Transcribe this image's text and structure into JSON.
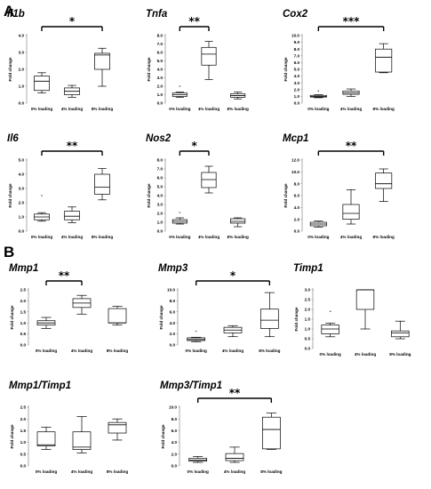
{
  "panels": {
    "a": "A",
    "b": "B"
  },
  "chart_data": [
    {
      "type": "boxplot",
      "group": "A",
      "title": "Il1b",
      "ylabel": "Fold change",
      "ylim": [
        0,
        4.0
      ],
      "yticks": [
        0.0,
        1.0,
        2.0,
        3.0,
        4.0
      ],
      "categories": [
        "0% loading",
        "4% loading",
        "8% loading"
      ],
      "boxes": [
        {
          "min": 0.6,
          "q1": 0.75,
          "median": 1.3,
          "q3": 1.6,
          "max": 1.8
        },
        {
          "min": 0.35,
          "q1": 0.5,
          "median": 0.7,
          "q3": 0.9,
          "max": 1.05
        },
        {
          "min": 1.0,
          "q1": 2.0,
          "median": 2.85,
          "q3": 2.95,
          "max": 3.25
        }
      ],
      "outliers": [
        [],
        [],
        []
      ],
      "significance": {
        "from": 0,
        "to": 2,
        "label": "*"
      }
    },
    {
      "type": "boxplot",
      "group": "A",
      "title": "Tnfa",
      "ylabel": "Fold change",
      "ylim": [
        0,
        8.0
      ],
      "yticks": [
        0.0,
        1.0,
        2.0,
        3.0,
        4.0,
        5.0,
        6.0,
        7.0,
        8.0
      ],
      "categories": [
        "0% loading",
        "4% loading",
        "8% loading"
      ],
      "boxes": [
        {
          "min": 0.7,
          "q1": 0.8,
          "median": 1.0,
          "q3": 1.2,
          "max": 1.3
        },
        {
          "min": 2.8,
          "q1": 4.5,
          "median": 5.8,
          "q3": 6.6,
          "max": 7.3
        },
        {
          "min": 0.5,
          "q1": 0.7,
          "median": 0.9,
          "q3": 1.1,
          "max": 1.3
        }
      ],
      "outliers": [
        [
          2.0
        ],
        [],
        []
      ],
      "significance": {
        "from": 0,
        "to": 1,
        "label": "**"
      }
    },
    {
      "type": "boxplot",
      "group": "A",
      "title": "Cox2",
      "ylabel": "Fold change",
      "ylim": [
        0,
        10.0
      ],
      "yticks": [
        0.0,
        1.0,
        2.0,
        3.0,
        4.0,
        5.0,
        6.0,
        7.0,
        8.0,
        9.0,
        10.0
      ],
      "categories": [
        "0% loading",
        "4% loading",
        "8% loading"
      ],
      "boxes": [
        {
          "min": 0.8,
          "q1": 0.9,
          "median": 1.0,
          "q3": 1.15,
          "max": 1.25
        },
        {
          "min": 1.0,
          "q1": 1.3,
          "median": 1.5,
          "q3": 1.8,
          "max": 2.1
        },
        {
          "min": 4.5,
          "q1": 4.6,
          "median": 6.8,
          "q3": 8.0,
          "max": 8.8
        }
      ],
      "outliers": [
        [
          1.8
        ],
        [],
        []
      ],
      "significance": {
        "from": 0,
        "to": 2,
        "label": "***"
      }
    },
    {
      "type": "boxplot",
      "group": "A",
      "title": "Il6",
      "ylabel": "Fold change",
      "ylim": [
        0,
        5.0
      ],
      "yticks": [
        0.0,
        1.0,
        2.0,
        3.0,
        4.0,
        5.0
      ],
      "categories": [
        "0% loading",
        "4% loading",
        "8% loading"
      ],
      "boxes": [
        {
          "min": 0.7,
          "q1": 0.8,
          "median": 1.0,
          "q3": 1.2,
          "max": 1.3
        },
        {
          "min": 0.6,
          "q1": 0.8,
          "median": 1.05,
          "q3": 1.4,
          "max": 1.7
        },
        {
          "min": 2.2,
          "q1": 2.6,
          "median": 3.1,
          "q3": 4.0,
          "max": 4.4
        }
      ],
      "outliers": [
        [
          2.5
        ],
        [],
        []
      ],
      "significance": {
        "from": 0,
        "to": 2,
        "label": "**"
      }
    },
    {
      "type": "boxplot",
      "group": "A",
      "title": "Nos2",
      "ylabel": "Fold change",
      "ylim": [
        0,
        8.0
      ],
      "yticks": [
        0.0,
        1.0,
        2.0,
        3.0,
        4.0,
        5.0,
        6.0,
        7.0,
        8.0
      ],
      "categories": [
        "0% loading",
        "4% loading",
        "8% loading"
      ],
      "boxes": [
        {
          "min": 0.8,
          "q1": 0.9,
          "median": 1.1,
          "q3": 1.3,
          "max": 1.5
        },
        {
          "min": 4.3,
          "q1": 4.9,
          "median": 5.8,
          "q3": 6.6,
          "max": 7.3
        },
        {
          "min": 0.5,
          "q1": 0.9,
          "median": 1.1,
          "q3": 1.4,
          "max": 1.5
        }
      ],
      "outliers": [
        [
          2.1
        ],
        [],
        []
      ],
      "significance": {
        "from": 0,
        "to": 1,
        "label": "*"
      }
    },
    {
      "type": "boxplot",
      "group": "A",
      "title": "Mcp1",
      "ylabel": "Fold change",
      "ylim": [
        0,
        12.0
      ],
      "yticks": [
        0.0,
        2.0,
        4.0,
        6.0,
        8.0,
        10.0,
        12.0
      ],
      "categories": [
        "0% loading",
        "4% loading",
        "8% loading"
      ],
      "boxes": [
        {
          "min": 0.7,
          "q1": 0.9,
          "median": 1.2,
          "q3": 1.5,
          "max": 1.7
        },
        {
          "min": 1.2,
          "q1": 2.0,
          "median": 3.0,
          "q3": 4.5,
          "max": 7.0
        },
        {
          "min": 5.0,
          "q1": 7.2,
          "median": 8.0,
          "q3": 9.8,
          "max": 10.5
        }
      ],
      "outliers": [
        [],
        [],
        []
      ],
      "significance": {
        "from": 0,
        "to": 2,
        "label": "**"
      }
    },
    {
      "type": "boxplot",
      "group": "B",
      "title": "Mmp1",
      "ylabel": "Fold change",
      "ylim": [
        0,
        2.5
      ],
      "yticks": [
        0.0,
        0.5,
        1.0,
        1.5,
        2.0,
        2.5
      ],
      "categories": [
        "0% loading",
        "4% loading",
        "8% loading"
      ],
      "boxes": [
        {
          "min": 0.75,
          "q1": 0.9,
          "median": 1.0,
          "q3": 1.1,
          "max": 1.25
        },
        {
          "min": 1.4,
          "q1": 1.7,
          "median": 1.9,
          "q3": 2.1,
          "max": 2.25
        },
        {
          "min": 0.9,
          "q1": 1.0,
          "median": 1.0,
          "q3": 1.65,
          "max": 1.75
        }
      ],
      "outliers": [
        [],
        [],
        []
      ],
      "significance": {
        "from": 0,
        "to": 1,
        "label": "**"
      }
    },
    {
      "type": "boxplot",
      "group": "B",
      "title": "Mmp3",
      "ylabel": "Fold change",
      "ylim": [
        0,
        10.0
      ],
      "yticks": [
        0.0,
        2.0,
        4.0,
        6.0,
        8.0,
        10.0
      ],
      "categories": [
        "0% loading",
        "4% loading",
        "8% loading"
      ],
      "boxes": [
        {
          "min": 0.6,
          "q1": 0.8,
          "median": 1.0,
          "q3": 1.3,
          "max": 1.4
        },
        {
          "min": 1.5,
          "q1": 2.2,
          "median": 2.7,
          "q3": 3.2,
          "max": 3.5
        },
        {
          "min": 1.5,
          "q1": 3.0,
          "median": 4.5,
          "q3": 6.5,
          "max": 9.5
        }
      ],
      "outliers": [
        [
          2.5
        ],
        [],
        []
      ],
      "significance": {
        "from": 0,
        "to": 2,
        "label": "*"
      }
    },
    {
      "type": "boxplot",
      "group": "B",
      "title": "Timp1",
      "ylabel": "Fold change",
      "ylim": [
        0,
        3.0
      ],
      "yticks": [
        0.0,
        0.5,
        1.0,
        1.5,
        2.0,
        2.5,
        3.0
      ],
      "categories": [
        "0% loading",
        "4% loading",
        "8% loading"
      ],
      "boxes": [
        {
          "min": 0.6,
          "q1": 0.75,
          "median": 1.0,
          "q3": 1.2,
          "max": 1.3
        },
        {
          "min": 1.0,
          "q1": 2.0,
          "median": 3.0,
          "q3": 3.0,
          "max": 3.0
        },
        {
          "min": 0.5,
          "q1": 0.6,
          "median": 0.8,
          "q3": 0.9,
          "max": 1.4
        }
      ],
      "outliers": [
        [
          1.9
        ],
        [],
        []
      ],
      "significance": null
    },
    {
      "type": "boxplot",
      "group": "B",
      "title": "Mmp1/Timp1",
      "ylabel": "Fold change",
      "ylim": [
        0,
        2.5
      ],
      "yticks": [
        0.0,
        0.5,
        1.0,
        1.5,
        2.0,
        2.5
      ],
      "categories": [
        "0% loading",
        "4% loading",
        "8% loading"
      ],
      "boxes": [
        {
          "min": 0.7,
          "q1": 0.85,
          "median": 0.9,
          "q3": 1.45,
          "max": 1.65
        },
        {
          "min": 0.55,
          "q1": 0.7,
          "median": 0.8,
          "q3": 1.45,
          "max": 2.1
        },
        {
          "min": 1.1,
          "q1": 1.4,
          "median": 1.75,
          "q3": 1.85,
          "max": 2.0
        }
      ],
      "outliers": [
        [],
        [],
        []
      ],
      "significance": null
    },
    {
      "type": "boxplot",
      "group": "B",
      "title": "Mmp3/Timp1",
      "ylabel": "Fold change",
      "ylim": [
        0,
        10.0
      ],
      "yticks": [
        0.0,
        2.0,
        4.0,
        6.0,
        8.0,
        10.0
      ],
      "categories": [
        "0% loading",
        "4% loading",
        "8% loading"
      ],
      "boxes": [
        {
          "min": 0.6,
          "q1": 0.8,
          "median": 1.0,
          "q3": 1.3,
          "max": 1.6
        },
        {
          "min": 0.6,
          "q1": 0.9,
          "median": 1.3,
          "q3": 2.1,
          "max": 3.2
        },
        {
          "min": 2.8,
          "q1": 2.9,
          "median": 6.2,
          "q3": 8.3,
          "max": 9.0
        }
      ],
      "outliers": [
        [],
        [],
        []
      ],
      "significance": {
        "from": 0,
        "to": 2,
        "label": "**"
      }
    }
  ]
}
